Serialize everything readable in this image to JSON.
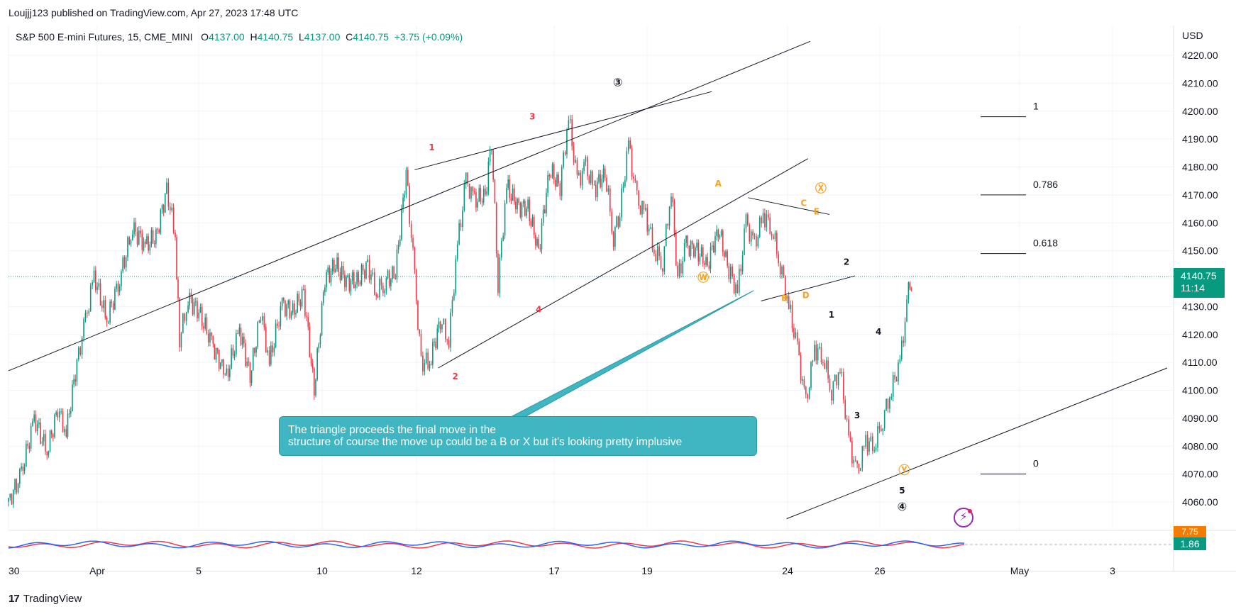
{
  "header": {
    "publisher": "Loujjj123 published on TradingView.com, Apr 27, 2023 17:48 UTC"
  },
  "symbol": {
    "name": "S&P 500 E-mini Futures, 15, CME_MINI",
    "open_label": "O",
    "open": "4137.00",
    "high_label": "H",
    "high": "4140.75",
    "low_label": "L",
    "low": "4137.00",
    "close_label": "C",
    "close": "4140.75",
    "change": "+3.75 (+0.09%)"
  },
  "currency": "USD",
  "last_price": {
    "price": "4140.75",
    "countdown": "11:14"
  },
  "indicator": {
    "value_a": "7.75",
    "value_b": "1.86"
  },
  "annotation_text": {
    "line1": "The triangle proceeds the final move in the",
    "line2": "structure of course the move up could be a B or X but it's looking pretty implusive"
  },
  "footer": {
    "brand": "TradingView",
    "logo_mark": "17"
  },
  "colors": {
    "up": "#089981",
    "down": "#f23645",
    "orange": "#f7a21b",
    "purple": "#9c27b0",
    "callout": "#3fb6c2",
    "grid": "#f0f3fa",
    "trendline": "#131722"
  },
  "chart_data": {
    "type": "candlestick",
    "title": "S&P 500 E-mini Futures, 15, CME_MINI",
    "ylabel": "USD",
    "ylim": [
      4050,
      4225
    ],
    "y_ticks": [
      "4220.00",
      "4210.00",
      "4200.00",
      "4190.00",
      "4180.00",
      "4170.00",
      "4160.00",
      "4150.00",
      "4140.00",
      "4130.00",
      "4120.00",
      "4110.00",
      "4100.00",
      "4090.00",
      "4080.00",
      "4070.00",
      "4060.00"
    ],
    "x_ticks": [
      "30",
      "Apr",
      "5",
      "10",
      "12",
      "17",
      "19",
      "24",
      "26",
      "May",
      "3"
    ],
    "price_path": [
      [
        0,
        4060
      ],
      [
        0.6,
        4070
      ],
      [
        1.2,
        4090
      ],
      [
        1.8,
        4078
      ],
      [
        2.3,
        4093
      ],
      [
        2.7,
        4085
      ],
      [
        3.2,
        4110
      ],
      [
        3.6,
        4125
      ],
      [
        4.0,
        4141
      ],
      [
        4.6,
        4125
      ],
      [
        5.2,
        4140
      ],
      [
        5.8,
        4158
      ],
      [
        6.4,
        4152
      ],
      [
        6.9,
        4155
      ],
      [
        7.4,
        4172
      ],
      [
        7.8,
        4155
      ],
      [
        8.0,
        4118
      ],
      [
        8.4,
        4133
      ],
      [
        8.9,
        4128
      ],
      [
        9.5,
        4117
      ],
      [
        10.2,
        4105
      ],
      [
        10.8,
        4122
      ],
      [
        11.3,
        4105
      ],
      [
        11.8,
        4128
      ],
      [
        12.2,
        4110
      ],
      [
        12.8,
        4131
      ],
      [
        13.3,
        4128
      ],
      [
        13.8,
        4135
      ],
      [
        14.3,
        4100
      ],
      [
        14.8,
        4140
      ],
      [
        15.3,
        4145
      ],
      [
        15.8,
        4139
      ],
      [
        16.3,
        4139
      ],
      [
        16.8,
        4145
      ],
      [
        17.2,
        4135
      ],
      [
        17.6,
        4139
      ],
      [
        18.1,
        4142
      ],
      [
        18.6,
        4178
      ],
      [
        19.0,
        4140
      ],
      [
        19.3,
        4110
      ],
      [
        19.7,
        4110
      ],
      [
        20.2,
        4125
      ],
      [
        20.6,
        4118
      ],
      [
        21.0,
        4152
      ],
      [
        21.4,
        4175
      ],
      [
        21.8,
        4168
      ],
      [
        22.3,
        4170
      ],
      [
        22.6,
        4189
      ],
      [
        22.9,
        4138
      ],
      [
        23.3,
        4173
      ],
      [
        23.8,
        4166
      ],
      [
        24.3,
        4165
      ],
      [
        24.8,
        4150
      ],
      [
        25.3,
        4179
      ],
      [
        25.8,
        4173
      ],
      [
        26.2,
        4198
      ],
      [
        26.6,
        4175
      ],
      [
        27.0,
        4180
      ],
      [
        27.4,
        4172
      ],
      [
        27.9,
        4178
      ],
      [
        28.3,
        4155
      ],
      [
        28.6,
        4164
      ],
      [
        29.0,
        4188
      ],
      [
        29.4,
        4168
      ],
      [
        29.8,
        4163
      ],
      [
        30.2,
        4150
      ],
      [
        30.6,
        4146
      ],
      [
        31.0,
        4172
      ],
      [
        31.3,
        4140
      ],
      [
        31.7,
        4152
      ],
      [
        32.2,
        4150
      ],
      [
        32.7,
        4145
      ],
      [
        33.2,
        4158
      ],
      [
        33.7,
        4143
      ],
      [
        34.1,
        4135
      ],
      [
        34.5,
        4160
      ],
      [
        34.9,
        4152
      ],
      [
        35.3,
        4163
      ],
      [
        35.7,
        4158
      ],
      [
        36.1,
        4145
      ],
      [
        36.5,
        4130
      ],
      [
        36.9,
        4115
      ],
      [
        37.3,
        4095
      ],
      [
        37.7,
        4115
      ],
      [
        38.1,
        4112
      ],
      [
        38.5,
        4100
      ],
      [
        38.9,
        4108
      ],
      [
        39.3,
        4082
      ],
      [
        39.7,
        4070
      ],
      [
        40.1,
        4082
      ],
      [
        40.5,
        4080
      ],
      [
        40.9,
        4090
      ],
      [
        41.3,
        4100
      ],
      [
        41.7,
        4110
      ],
      [
        42.1,
        4135
      ],
      [
        42.3,
        4141
      ]
    ],
    "x_range": [
      0,
      54.5
    ],
    "trendlines": [
      {
        "from": [
          0,
          4107
        ],
        "to": [
          37.5,
          4225
        ]
      },
      {
        "from": [
          19.0,
          4179
        ],
        "to": [
          32.9,
          4207
        ]
      },
      {
        "from": [
          20.1,
          4108
        ],
        "to": [
          37.4,
          4183
        ]
      },
      {
        "from": [
          34.6,
          4169
        ],
        "to": [
          38.4,
          4163
        ]
      },
      {
        "from": [
          35.2,
          4132
        ],
        "to": [
          39.6,
          4141
        ]
      },
      {
        "from": [
          36.4,
          4054
        ],
        "to": [
          54.2,
          4108
        ]
      }
    ],
    "fibonacci": [
      {
        "label": "1",
        "price": 4198
      },
      {
        "label": "0.786",
        "price": 4170
      },
      {
        "label": "0.618",
        "price": 4149
      },
      {
        "label": "0",
        "price": 4070
      }
    ],
    "wave_labels": [
      {
        "text": "1",
        "x": 19.8,
        "price": 4186,
        "color": "red"
      },
      {
        "text": "3",
        "x": 24.5,
        "price": 4197,
        "color": "red"
      },
      {
        "text": "2",
        "x": 20.9,
        "price": 4104,
        "color": "red"
      },
      {
        "text": "4",
        "x": 24.8,
        "price": 4128,
        "color": "red"
      },
      {
        "text": "③",
        "x": 28.5,
        "price": 4209,
        "color": "black"
      },
      {
        "text": "A",
        "x": 33.2,
        "price": 4173,
        "color": "orange"
      },
      {
        "text": "Ⓦ",
        "x": 32.5,
        "price": 4139,
        "color": "orange"
      },
      {
        "text": "Ⓧ",
        "x": 38.0,
        "price": 4171,
        "color": "orange"
      },
      {
        "text": "B",
        "x": 36.3,
        "price": 4132,
        "color": "orange"
      },
      {
        "text": "C",
        "x": 37.2,
        "price": 4166,
        "color": "orange"
      },
      {
        "text": "D",
        "x": 37.3,
        "price": 4133,
        "color": "orange"
      },
      {
        "text": "E",
        "x": 37.8,
        "price": 4163,
        "color": "orange"
      },
      {
        "text": "2",
        "x": 39.2,
        "price": 4145,
        "color": "black"
      },
      {
        "text": "1",
        "x": 38.5,
        "price": 4126,
        "color": "black"
      },
      {
        "text": "4",
        "x": 40.7,
        "price": 4120,
        "color": "black"
      },
      {
        "text": "3",
        "x": 39.7,
        "price": 4090,
        "color": "black"
      },
      {
        "text": "Ⓨ",
        "x": 41.9,
        "price": 4070,
        "color": "orange"
      },
      {
        "text": "5",
        "x": 41.8,
        "price": 4063,
        "color": "black"
      },
      {
        "text": "④",
        "x": 41.8,
        "price": 4057,
        "color": "black"
      }
    ]
  }
}
